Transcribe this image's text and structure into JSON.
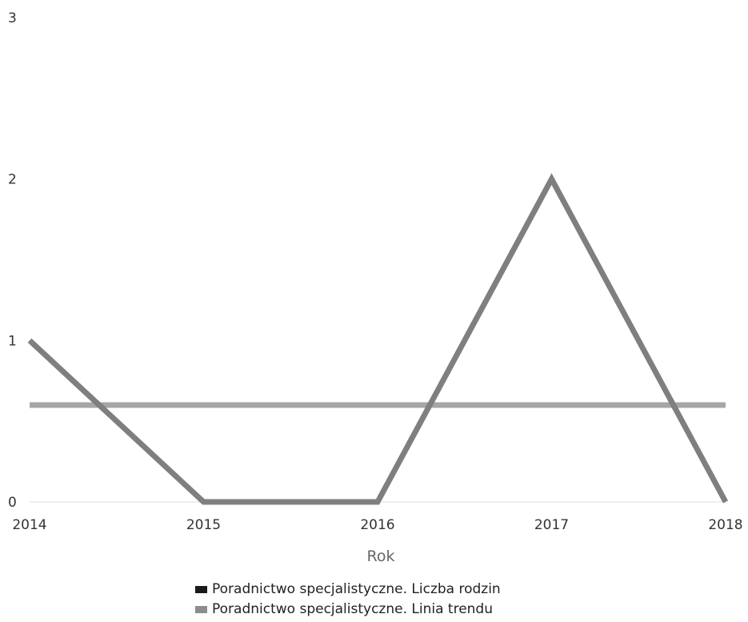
{
  "chart_data": {
    "type": "line",
    "x": [
      "2014",
      "2015",
      "2016",
      "2017",
      "2018"
    ],
    "series": [
      {
        "name": "Poradnictwo specjalistyczne. Liczba rodzin",
        "values": [
          1,
          0,
          0,
          2,
          0
        ],
        "color": "#7f7f7f"
      },
      {
        "name": "Poradnictwo specjalistyczne. Linia trendu",
        "values": [
          0.6,
          0.6,
          0.6,
          0.6,
          0.6
        ],
        "color": "#a6a6a6"
      }
    ],
    "legend_markers": [
      "#1a1a1a",
      "#8c8c8c"
    ],
    "xlabel": "Rok",
    "ylabel": "",
    "ylim": [
      0,
      3
    ],
    "yticks": [
      0,
      1,
      2,
      3
    ],
    "grid": false,
    "legend_position": "bottom-center"
  }
}
